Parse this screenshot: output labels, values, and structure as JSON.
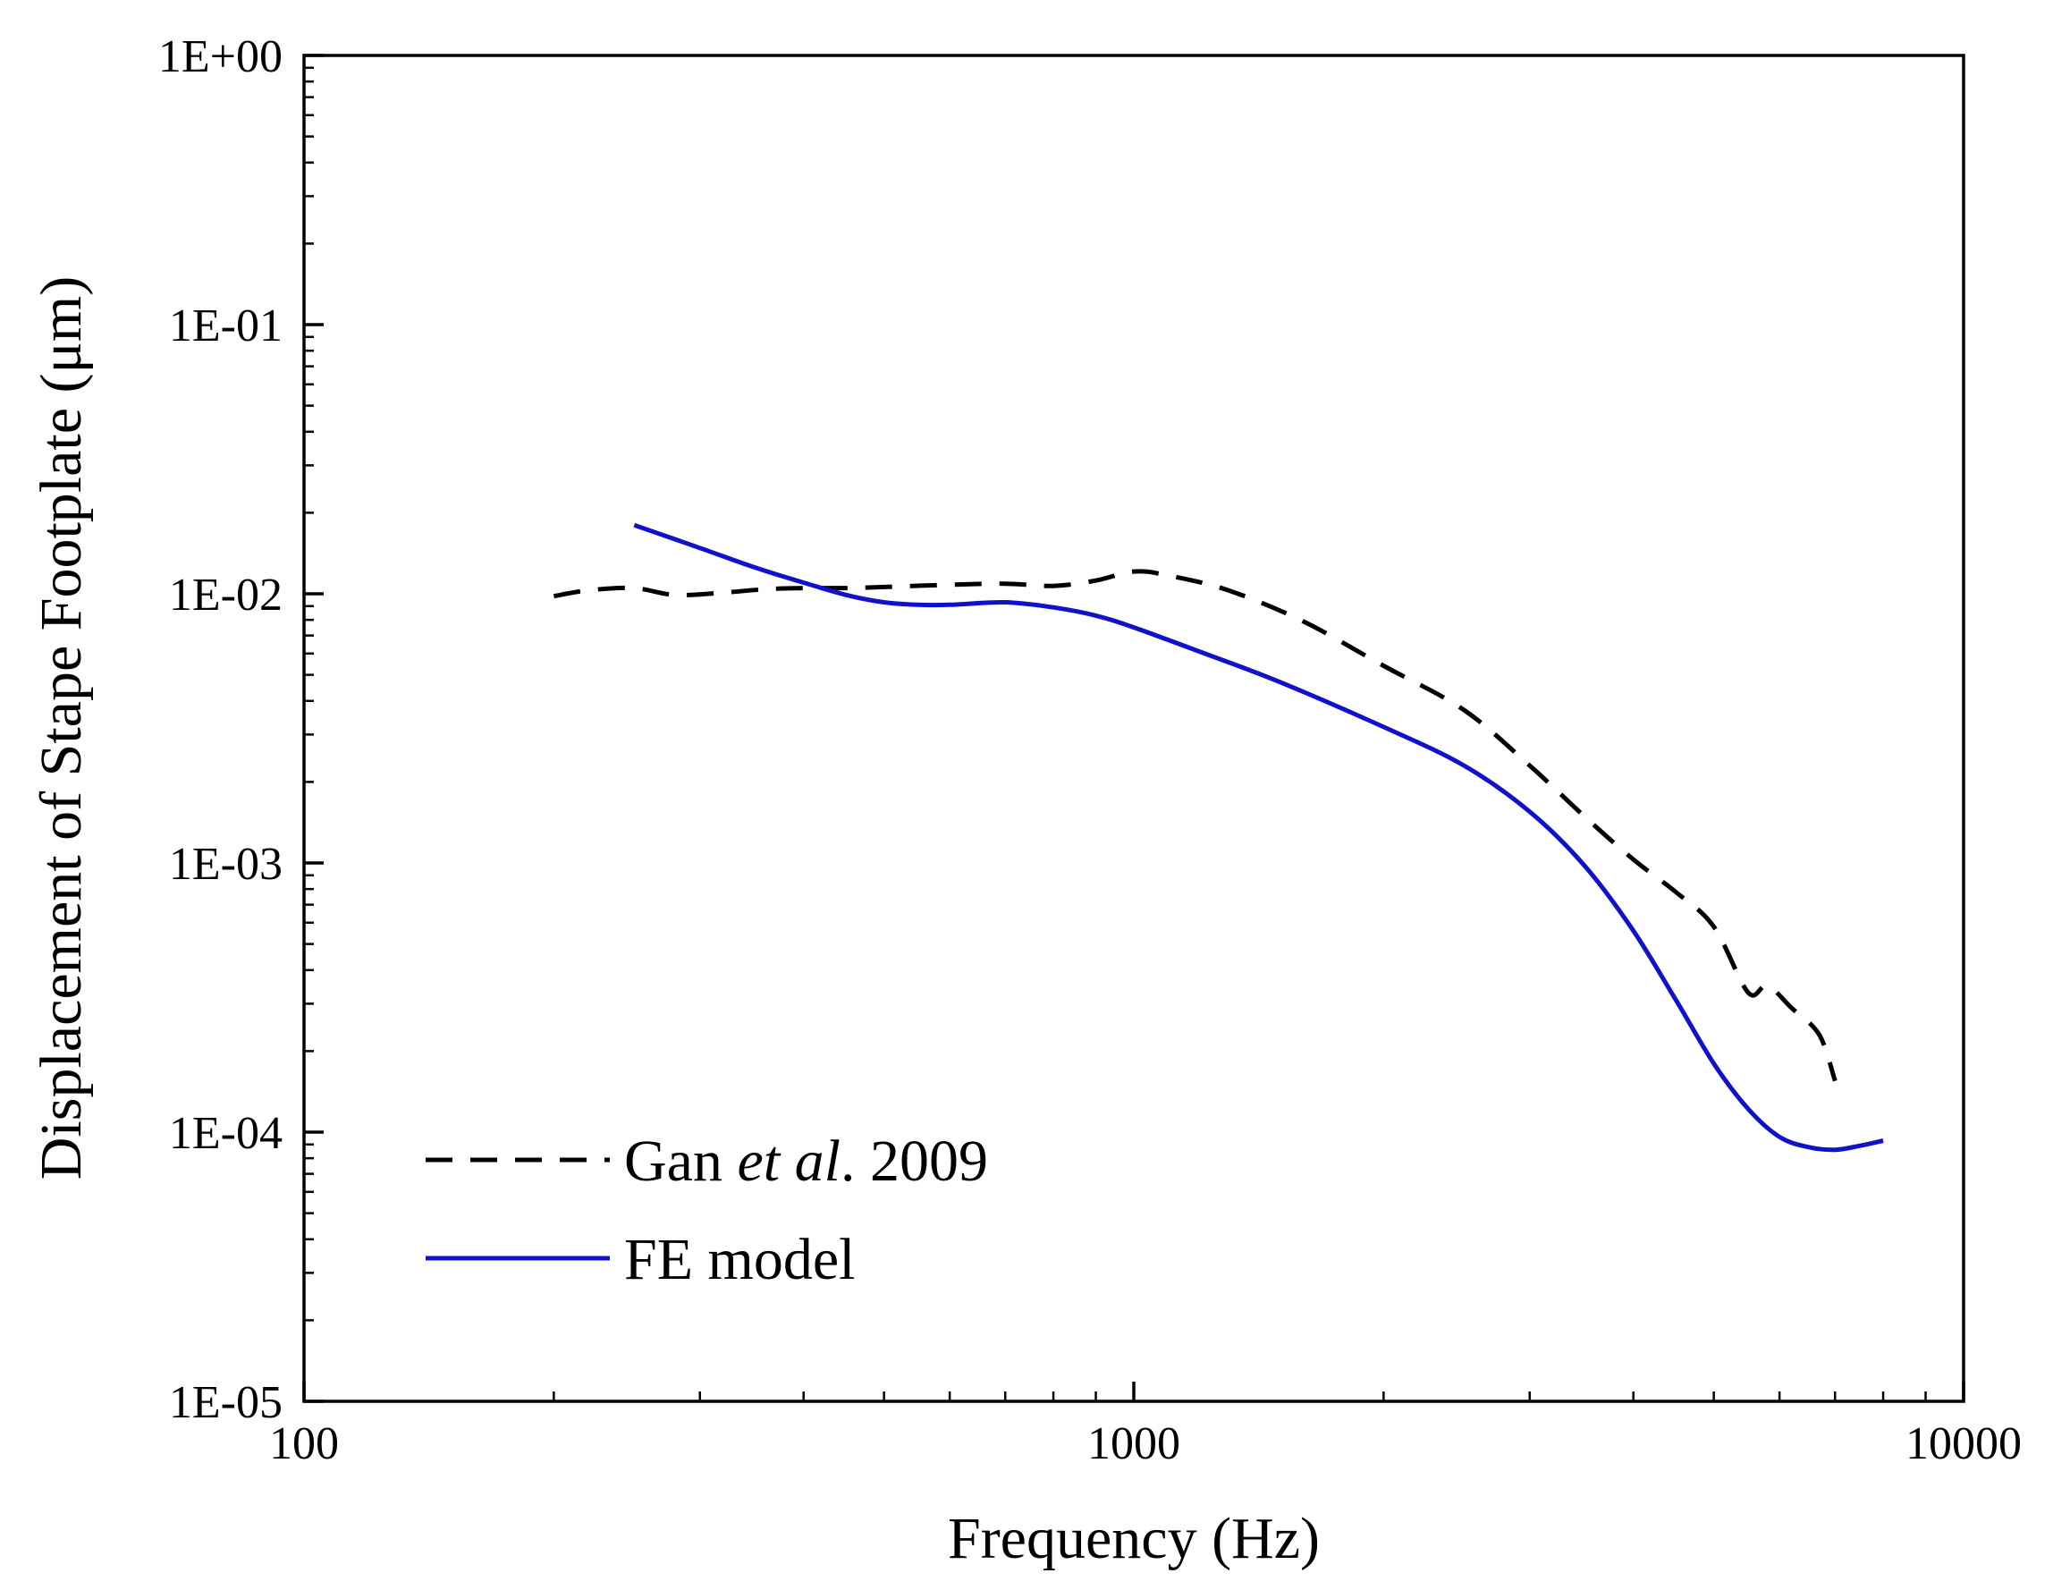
{
  "chart_data": {
    "type": "line",
    "xscale": "log",
    "yscale": "log",
    "xlabel": "Frequency (Hz)",
    "ylabel": "Displacement of Stape Footplate (μm)",
    "xlim": [
      100,
      10000
    ],
    "ylim": [
      1e-05,
      1
    ],
    "x_tick_values": [
      100,
      1000,
      10000
    ],
    "x_tick_labels": [
      "100",
      "1000",
      "10000"
    ],
    "y_tick_values": [
      1e-05,
      0.0001,
      0.001,
      0.01,
      0.1,
      1
    ],
    "y_tick_labels": [
      "1E-05",
      "1E-04",
      "1E-03",
      "1E-02",
      "1E-01",
      "1E+00"
    ],
    "legend_position": "bottom-left",
    "colors": {
      "axis": "#000000",
      "gan": "#000000",
      "fe": "#1111cc"
    },
    "series": [
      {
        "name": "Gan et al. 2009",
        "legend_parts": [
          "Gan ",
          "et al",
          ". 2009"
        ],
        "style": "dashed",
        "x": [
          200,
          220,
          250,
          280,
          320,
          360,
          400,
          450,
          500,
          600,
          700,
          800,
          900,
          1000,
          1100,
          1300,
          1600,
          2000,
          2500,
          3000,
          3500,
          4000,
          4500,
          5000,
          5500,
          5800,
          6200,
          6700,
          7000
        ],
        "y": [
          0.0098,
          0.0103,
          0.0105,
          0.0099,
          0.0101,
          0.0104,
          0.0105,
          0.0105,
          0.0106,
          0.0108,
          0.0109,
          0.0107,
          0.0112,
          0.0121,
          0.0117,
          0.0103,
          0.0079,
          0.0054,
          0.0037,
          0.0023,
          0.00148,
          0.00103,
          0.00078,
          0.00058,
          0.00033,
          0.00035,
          0.00029,
          0.00023,
          0.000155
        ]
      },
      {
        "name": "FE model",
        "legend_parts": [
          "FE model"
        ],
        "style": "solid",
        "x": [
          250,
          300,
          350,
          400,
          450,
          500,
          550,
          600,
          700,
          800,
          900,
          1000,
          1200,
          1500,
          2000,
          2500,
          3000,
          3500,
          4000,
          4500,
          5000,
          5500,
          6000,
          6500,
          7000,
          7500,
          8000
        ],
        "y": [
          0.018,
          0.0148,
          0.0125,
          0.011,
          0.0099,
          0.0093,
          0.0091,
          0.0091,
          0.0093,
          0.0089,
          0.0083,
          0.0075,
          0.0061,
          0.0047,
          0.0032,
          0.0023,
          0.00155,
          0.00097,
          0.00056,
          0.00031,
          0.00018,
          0.000122,
          9.6e-05,
          8.8e-05,
          8.6e-05,
          8.9e-05,
          9.3e-05
        ]
      }
    ]
  }
}
